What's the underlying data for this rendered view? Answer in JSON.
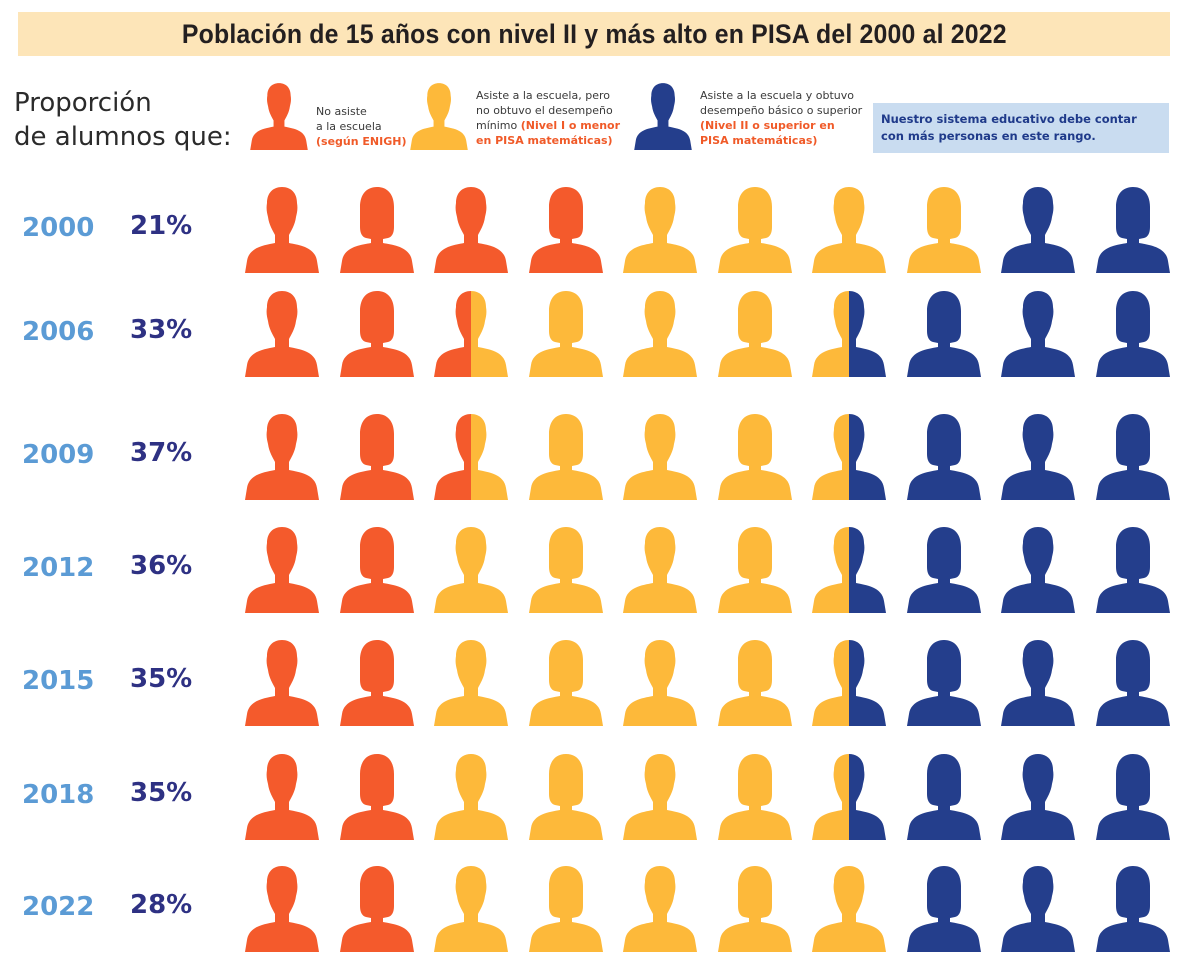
{
  "title": "Población de 15 años con nivel II y más alto en PISA del 2000 al 2022",
  "proportion_label": [
    "Proporción",
    "de alumnos que:"
  ],
  "colors": {
    "no_attend": "#f45a2c",
    "below_level2": "#fdb93a",
    "level2_plus": "#243e8c",
    "title_bg": "#fde5b8",
    "note_bg": "#c9dcf0",
    "year": "#5b9bd5",
    "pct": "#2e3183"
  },
  "legend": [
    {
      "key": "no_attend",
      "lines": [
        "No asiste",
        "a la escuela"
      ],
      "highlight": "(según ENIGH)"
    },
    {
      "key": "below_level2",
      "lines": [
        "Asiste a la escuela, pero",
        "no obtuvo el desempeño",
        "mínimo"
      ],
      "highlight": "(Nivel I o menor en PISA matemáticas)"
    },
    {
      "key": "level2_plus",
      "lines": [
        "Asiste a la escuela y obtuvo",
        "desempeño básico o superior"
      ],
      "highlight": "(Nivel II o superior en PISA matemáticas)"
    }
  ],
  "note": "Nuestro sistema educativo debe contar con más personas en este rango.",
  "chart_data": {
    "type": "pictogram",
    "title": "Población de 15 años con nivel II y más alto en PISA del 2000 al 2022",
    "icons_per_row": 10,
    "series_names": [
      "No asiste a la escuela (según ENIGH)",
      "Asiste a la escuela, pero no obtuvo el desempeño mínimo (Nivel I o menor en PISA matemáticas)",
      "Asiste a la escuela y obtuvo desempeño básico o superior (Nivel II o superior en PISA matemáticas)"
    ],
    "rows": [
      {
        "year": "2000",
        "pct_label": "21%",
        "icons": {
          "no_attend": 4,
          "below_level2": 4,
          "level2_plus": 2
        }
      },
      {
        "year": "2006",
        "pct_label": "33%",
        "icons": {
          "no_attend": 2.5,
          "below_level2": 4,
          "level2_plus": 3.5
        }
      },
      {
        "year": "2009",
        "pct_label": "37%",
        "icons": {
          "no_attend": 2.5,
          "below_level2": 4,
          "level2_plus": 3.5
        }
      },
      {
        "year": "2012",
        "pct_label": "36%",
        "icons": {
          "no_attend": 2,
          "below_level2": 4.5,
          "level2_plus": 3.5
        }
      },
      {
        "year": "2015",
        "pct_label": "35%",
        "icons": {
          "no_attend": 2,
          "below_level2": 4.5,
          "level2_plus": 3.5
        }
      },
      {
        "year": "2018",
        "pct_label": "35%",
        "icons": {
          "no_attend": 2,
          "below_level2": 4.5,
          "level2_plus": 3.5
        }
      },
      {
        "year": "2022",
        "pct_label": "28%",
        "icons": {
          "no_attend": 2,
          "below_level2": 5,
          "level2_plus": 3
        }
      }
    ]
  }
}
